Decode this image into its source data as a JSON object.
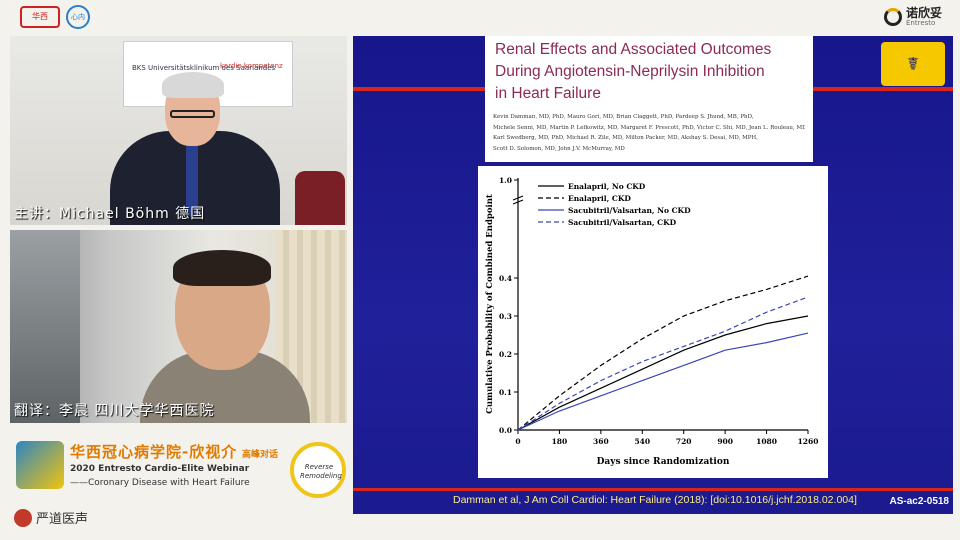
{
  "top_logos": {
    "left1_label": "华西",
    "left2_label": "心内",
    "right_brand": "诺欣妥",
    "right_brand_en": "Entresto"
  },
  "video1": {
    "banner_left": "BKS Universitätsklinikum des Saarlandes",
    "banner_right": "kardio kompetenz",
    "caption": "主讲：Michael Böhm  德国"
  },
  "video2": {
    "caption": "翻译：李晨 四川大学华西医院"
  },
  "branding": {
    "title": "华西冠心病学院-欣视介",
    "title_suffix": "高峰对话",
    "line1": "2020 Entresto Cardio-Elite Webinar",
    "line2": "——Coronary Disease with Heart Failure",
    "emblem_text": "Reverse Remodeling",
    "footer_logo": "严道医声"
  },
  "slide": {
    "title_lines": [
      "Renal Effects and Associated Outcomes",
      "During Angiotensin-Neprilysin Inhibition",
      "in Heart Failure"
    ],
    "author_lines": [
      "Kevin Damman, MD, PhD,  Mauro Gori, MD,  Brian Claggett, PhD,  Pardeep S. Jhund, MB, PhD,",
      "Michele Senni, MD,  Martin P. Lefkowitz, MD,  Margaret F. Prescott, PhD,  Victor C. Shi, MD,  Jean L. Rouleau, MD,",
      "Karl Swedberg, MD, PhD,  Michael R. Zile, MD,  Milton Packer, MD,  Akshay S. Desai, MD, MPH,",
      "Scott D. Solomon, MD,  John J.V. McMurray, MD"
    ],
    "citation": "Damman et al, J Am Coll Cardiol: Heart Failure (2018): [doi:10.1016/j.jchf.2018.02.004]",
    "slide_code": "AS-ac2-0518",
    "emblem": "☤"
  },
  "chart_data": {
    "type": "line",
    "xlabel": "Days since Randomization",
    "ylabel": "Cumulative Probability of Combined Endpoint",
    "x_ticks": [
      0,
      180,
      360,
      540,
      720,
      900,
      1080,
      1260
    ],
    "y_ticks": [
      0.0,
      0.1,
      0.2,
      0.3,
      0.4,
      1.0
    ],
    "y_tick_labels": [
      "0.0",
      "0.1",
      "0.2",
      "0.3",
      "0.4",
      "1.0"
    ],
    "xlim": [
      0,
      1260
    ],
    "ylim": [
      0,
      0.45
    ],
    "axis_break": true,
    "legend_position": "top-left",
    "x": [
      0,
      180,
      360,
      540,
      720,
      900,
      1080,
      1260
    ],
    "series": [
      {
        "name": "Enalapril, No CKD",
        "color": "#000000",
        "dash": "solid",
        "values": [
          0,
          0.06,
          0.11,
          0.16,
          0.21,
          0.25,
          0.28,
          0.3
        ]
      },
      {
        "name": "Enalapril, CKD",
        "color": "#000000",
        "dash": "dashed",
        "values": [
          0,
          0.09,
          0.17,
          0.24,
          0.3,
          0.34,
          0.37,
          0.405
        ]
      },
      {
        "name": "Sacubitril/Valsartan, No CKD",
        "color": "#3a47b5",
        "dash": "solid",
        "values": [
          0,
          0.05,
          0.09,
          0.13,
          0.17,
          0.21,
          0.23,
          0.255
        ]
      },
      {
        "name": "Sacubitril/Valsartan, CKD",
        "color": "#3a47b5",
        "dash": "dashed",
        "values": [
          0,
          0.07,
          0.13,
          0.18,
          0.22,
          0.26,
          0.31,
          0.35
        ]
      }
    ]
  }
}
